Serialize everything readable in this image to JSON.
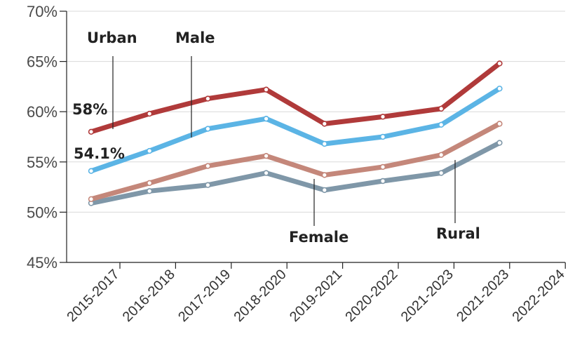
{
  "chart_data": {
    "type": "line",
    "categories": [
      "2015-2017",
      "2016-2018",
      "2017-2019",
      "2018-2020",
      "2019-2021",
      "2020-2022",
      "2021-2023",
      "2021-2023",
      "2022-2024"
    ],
    "ylim": [
      45,
      70
    ],
    "yticks": [
      45,
      50,
      55,
      60,
      65,
      70
    ],
    "ytick_suffix": "%",
    "grid": true,
    "series": [
      {
        "name": "Urban",
        "color": "#b03a3a",
        "values": [
          58.0,
          59.8,
          61.3,
          62.2,
          58.8,
          59.5,
          60.3,
          64.8,
          null
        ],
        "values_shifted": true
      },
      {
        "name": "Male",
        "color": "#5bb4e5",
        "values": [
          54.1,
          56.1,
          58.3,
          59.3,
          56.8,
          57.5,
          58.7,
          62.3,
          null
        ],
        "values_shifted": true
      },
      {
        "name": "Rural",
        "color": "#c4877a",
        "values": [
          51.3,
          52.9,
          54.6,
          55.6,
          53.7,
          54.5,
          55.7,
          58.8,
          null
        ],
        "values_shifted": true
      },
      {
        "name": "Female",
        "color": "#7f97a8",
        "values": [
          50.9,
          52.1,
          52.7,
          53.9,
          52.2,
          53.1,
          53.9,
          56.9,
          null
        ],
        "values_shifted": true
      }
    ],
    "annotations": [
      {
        "text": "58%",
        "series": "Urban"
      },
      {
        "text": "54.1%",
        "series": "Male"
      }
    ]
  }
}
